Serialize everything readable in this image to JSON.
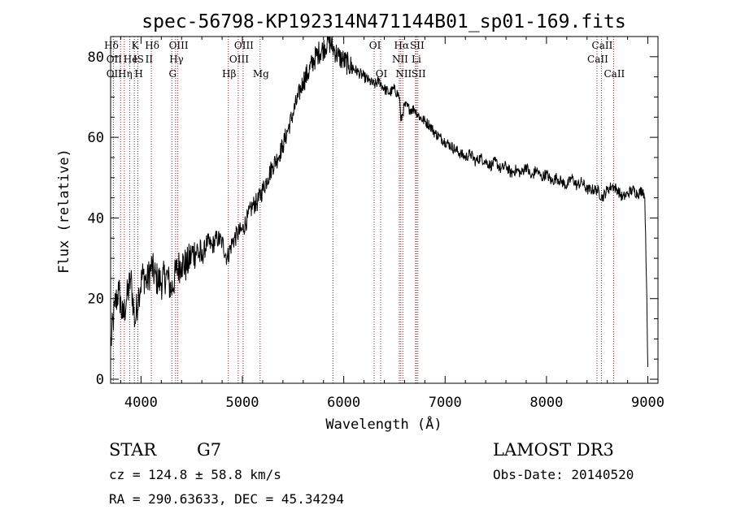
{
  "chart_data": {
    "type": "line",
    "title": "spec-56798-KP192314N471144B01_sp01-169.fits",
    "xlabel": "Wavelength (Å)",
    "ylabel": "Flux (relative)",
    "xlim": [
      3700,
      9100
    ],
    "ylim": [
      -1,
      85
    ],
    "x_ticks": [
      4000,
      5000,
      6000,
      7000,
      8000,
      9000
    ],
    "x_tick_labels": [
      "4000",
      "5000",
      "6000",
      "7000",
      "8000",
      "9000"
    ],
    "y_ticks": [
      0,
      20,
      40,
      60,
      80
    ],
    "y_tick_labels": [
      "0",
      "20",
      "40",
      "60",
      "80"
    ],
    "series": [
      {
        "name": "flux",
        "x": [
          3700,
          3740,
          3780,
          3820,
          3860,
          3900,
          3940,
          3980,
          4020,
          4060,
          4100,
          4150,
          4200,
          4250,
          4300,
          4350,
          4400,
          4450,
          4500,
          4550,
          4600,
          4650,
          4700,
          4750,
          4800,
          4850,
          4900,
          4950,
          5000,
          5050,
          5100,
          5150,
          5200,
          5250,
          5300,
          5350,
          5400,
          5450,
          5500,
          5550,
          5600,
          5650,
          5700,
          5750,
          5800,
          5850,
          5900,
          5950,
          6000,
          6050,
          6100,
          6150,
          6200,
          6250,
          6300,
          6350,
          6400,
          6450,
          6500,
          6550,
          6563,
          6600,
          6650,
          6700,
          6750,
          6800,
          6850,
          6900,
          6950,
          7000,
          7050,
          7100,
          7150,
          7200,
          7250,
          7300,
          7350,
          7400,
          7450,
          7500,
          7550,
          7600,
          7650,
          7700,
          7750,
          7800,
          7850,
          7900,
          7950,
          8000,
          8050,
          8100,
          8150,
          8200,
          8250,
          8300,
          8350,
          8400,
          8450,
          8500,
          8550,
          8600,
          8650,
          8700,
          8750,
          8800,
          8850,
          8900,
          8950,
          8970,
          8990,
          9000
        ],
        "values": [
          8,
          18,
          22,
          15,
          20,
          25,
          14,
          22,
          26,
          24,
          28,
          25,
          24,
          26,
          22,
          27,
          29,
          28,
          31,
          32,
          30,
          34,
          33,
          35,
          34,
          30,
          34,
          36,
          37,
          40,
          43,
          44,
          47,
          50,
          53,
          55,
          58,
          62,
          66,
          70,
          74,
          76,
          79,
          81,
          82,
          84,
          82,
          80,
          79,
          78,
          77,
          76,
          75,
          74,
          73,
          74,
          72,
          71,
          72,
          70,
          64,
          68,
          67,
          67,
          65,
          64,
          63,
          61,
          60,
          59,
          58,
          57,
          56,
          55,
          56,
          54,
          55,
          54,
          53,
          54,
          52,
          53,
          51,
          52,
          51,
          53,
          50,
          52,
          50,
          51,
          49,
          50,
          49,
          48,
          50,
          48,
          49,
          47,
          47,
          47,
          45,
          47,
          48,
          47,
          45,
          46,
          47,
          46,
          47,
          45,
          20,
          3
        ]
      }
    ],
    "lines_top": [
      {
        "label": "Hδ",
        "x": 3700
      },
      {
        "label": "K",
        "x": 3934
      },
      {
        "label": "Hδ",
        "x": 4102
      },
      {
        "label": "OIII",
        "x": 4363
      },
      {
        "label": "OIII",
        "x": 5007
      },
      {
        "label": "OI",
        "x": 6300
      },
      {
        "label": "Hα",
        "x": 6563
      },
      {
        "label": "SII",
        "x": 6716
      },
      {
        "label": "CaII",
        "x": 8542
      }
    ],
    "lines_mid": [
      {
        "label": "OII",
        "x": 3727
      },
      {
        "label": "He",
        "x": 3889
      },
      {
        "label": "IS",
        "x": 3968
      },
      {
        "label": "II",
        "x": 4072
      },
      {
        "label": "Hγ",
        "x": 4341
      },
      {
        "label": "OIII",
        "x": 4959
      },
      {
        "label": "NII",
        "x": 6548
      },
      {
        "label": "Li",
        "x": 6708
      },
      {
        "label": "CaII",
        "x": 8498
      }
    ],
    "lines_low": [
      {
        "label": "OII",
        "x": 3727
      },
      {
        "label": "Hη",
        "x": 3835
      },
      {
        "label": "H",
        "x": 3970
      },
      {
        "label": "G",
        "x": 4304
      },
      {
        "label": "Hβ",
        "x": 4861
      },
      {
        "label": "Mg",
        "x": 5175
      },
      {
        "label": "OI",
        "x": 6364
      },
      {
        "label": "NII",
        "x": 6583
      },
      {
        "label": "SII",
        "x": 6731
      },
      {
        "label": "CaII",
        "x": 8662
      }
    ],
    "line_positions": [
      3727,
      3798,
      3835,
      3889,
      3934,
      3968,
      4102,
      4304,
      4341,
      4363,
      4861,
      4959,
      5007,
      5175,
      5893,
      6300,
      6364,
      6548,
      6563,
      6583,
      6708,
      6716,
      6731,
      8498,
      8542,
      8662
    ]
  },
  "info": {
    "class": "STAR",
    "subclass": "G7",
    "survey": "LAMOST DR3",
    "cz": "cz = 124.8 ± 58.8 km/s",
    "obs_date": "Obs-Date: 20140520",
    "coords": "RA = 290.63633, DEC =  45.34294"
  },
  "colors": {
    "axis": "#000000",
    "spectrum": "#000000",
    "line_marker": "#8b1a1a"
  }
}
